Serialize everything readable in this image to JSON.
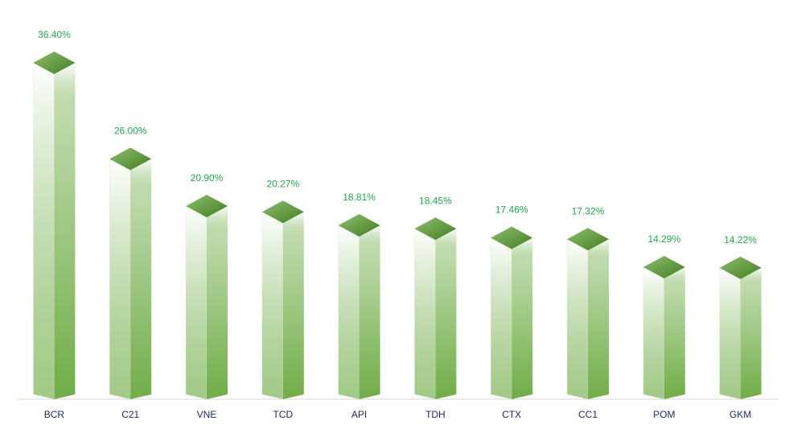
{
  "chart_data": {
    "type": "bar",
    "categories": [
      "BCR",
      "C21",
      "VNE",
      "TCD",
      "API",
      "TDH",
      "CTX",
      "CC1",
      "POM",
      "GKM"
    ],
    "values": [
      36.4,
      26.0,
      20.9,
      20.27,
      18.81,
      18.45,
      17.46,
      17.32,
      14.29,
      14.22
    ],
    "value_labels": [
      "36.40%",
      "26.00%",
      "20.90%",
      "20.27%",
      "18.81%",
      "18.45%",
      "17.46%",
      "17.32%",
      "14.29%",
      "14.22%"
    ],
    "color": "#70ad47"
  }
}
